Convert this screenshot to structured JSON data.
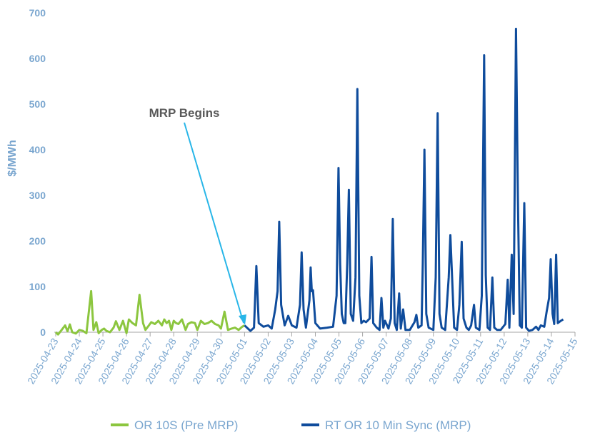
{
  "chart_data": {
    "type": "line",
    "title": "",
    "xlabel": "",
    "ylabel": "$/MWh",
    "ylim": [
      0,
      700
    ],
    "yticks": [
      "0",
      "100",
      "200",
      "300",
      "400",
      "500",
      "600",
      "700"
    ],
    "xlim": [
      "2025-04-23",
      "2025-05-15"
    ],
    "xticks": [
      "2025-04-23",
      "2025-04-24",
      "2025-04-25",
      "2025-04-26",
      "2025-04-27",
      "2025-04-28",
      "2025-04-29",
      "2025-04-30",
      "2025-05-01",
      "2025-05-02",
      "2025-05-03",
      "2025-05-04",
      "2025-05-05",
      "2025-05-06",
      "2025-05-07",
      "2025-05-08",
      "2025-05-09",
      "2025-05-10",
      "2025-05-11",
      "2025-05-12",
      "2025-05-13",
      "2025-05-14",
      "2025-05-15"
    ],
    "grid": false,
    "legend_position": "bottom",
    "colors": {
      "pre": "#8cc63f",
      "post": "#0f4c9c",
      "axis_text": "#7aa6cf",
      "annotation_arrow": "#29b6e8",
      "annotation_text": "#595959"
    },
    "annotation": {
      "text": "MRP Begins",
      "date": "2025-05-01"
    },
    "series": [
      {
        "name": "OR 10S (Pre MRP)",
        "x": [
          "2025-04-23",
          "2025-04-23.1",
          "2025-04-23.25",
          "2025-04-23.4",
          "2025-04-23.5",
          "2025-04-23.6",
          "2025-04-23.7",
          "2025-04-23.85",
          "2025-04-24",
          "2025-04-24.15",
          "2025-04-24.3",
          "2025-04-24.5",
          "2025-04-24.6",
          "2025-04-24.72",
          "2025-04-24.82",
          "2025-04-24.95",
          "2025-04-25.05",
          "2025-04-25.15",
          "2025-04-25.3",
          "2025-04-25.45",
          "2025-04-25.55",
          "2025-04-25.7",
          "2025-04-25.85",
          "2025-04-26",
          "2025-04-26.1",
          "2025-04-26.25",
          "2025-04-26.4",
          "2025-04-26.55",
          "2025-04-26.7",
          "2025-04-26.8",
          "2025-04-26.95",
          "2025-04-27.05",
          "2025-04-27.2",
          "2025-04-27.35",
          "2025-04-27.5",
          "2025-04-27.6",
          "2025-04-27.7",
          "2025-04-27.8",
          "2025-04-27.9",
          "2025-04-28",
          "2025-04-28.1",
          "2025-04-28.2",
          "2025-04-28.35",
          "2025-04-28.5",
          "2025-04-28.6",
          "2025-04-28.75",
          "2025-04-28.9",
          "2025-04-29",
          "2025-04-29.15",
          "2025-04-29.3",
          "2025-04-29.45",
          "2025-04-29.6",
          "2025-04-29.75",
          "2025-04-29.9",
          "2025-04-30",
          "2025-04-30.15",
          "2025-04-30.3",
          "2025-04-30.45",
          "2025-04-30.6",
          "2025-04-30.75",
          "2025-04-30.9",
          "2025-05-01"
        ],
        "values": [
          0,
          -5,
          5,
          15,
          2,
          17,
          0,
          -3,
          5,
          3,
          -2,
          90,
          5,
          22,
          -2,
          5,
          8,
          3,
          0,
          10,
          24,
          5,
          25,
          -2,
          28,
          20,
          15,
          82,
          20,
          5,
          15,
          22,
          18,
          25,
          15,
          28,
          20,
          25,
          5,
          25,
          20,
          18,
          28,
          5,
          18,
          22,
          20,
          5,
          25,
          18,
          20,
          25,
          18,
          15,
          8,
          45,
          5,
          8,
          10,
          5,
          12,
          15
        ]
      },
      {
        "name": "RT OR 10 Min Sync (MRP)",
        "x": [],
        "values": []
      }
    ],
    "post_series_points": [
      [
        "2025-05-01",
        15
      ],
      [
        "2025-05-01.1",
        10
      ],
      [
        "2025-05-01.25",
        3
      ],
      [
        "2025-05-01.4",
        10
      ],
      [
        "2025-05-01.5",
        145
      ],
      [
        "2025-05-01.6",
        20
      ],
      [
        "2025-05-01.8",
        12
      ],
      [
        "2025-05-02",
        15
      ],
      [
        "2025-05-02.15",
        8
      ],
      [
        "2025-05-02.3",
        50
      ],
      [
        "2025-05-02.4",
        90
      ],
      [
        "2025-05-02.47",
        242
      ],
      [
        "2025-05-02.55",
        60
      ],
      [
        "2025-05-02.7",
        15
      ],
      [
        "2025-05-02.85",
        36
      ],
      [
        "2025-05-03",
        15
      ],
      [
        "2025-05-03.2",
        10
      ],
      [
        "2025-05-03.35",
        60
      ],
      [
        "2025-05-03.42",
        175
      ],
      [
        "2025-05-03.5",
        50
      ],
      [
        "2025-05-03.6",
        10
      ],
      [
        "2025-05-03.75",
        70
      ],
      [
        "2025-05-03.8",
        142
      ],
      [
        "2025-05-03.85",
        90
      ],
      [
        "2025-05-03.9",
        92
      ],
      [
        "2025-05-04",
        20
      ],
      [
        "2025-05-04.2",
        8
      ],
      [
        "2025-05-04.5",
        10
      ],
      [
        "2025-05-04.75",
        12
      ],
      [
        "2025-05-04.9",
        80
      ],
      [
        "2025-05-04.98",
        360
      ],
      [
        "2025-05-05.05",
        150
      ],
      [
        "2025-05-05.12",
        40
      ],
      [
        "2025-05-05.2",
        20
      ],
      [
        "2025-05-05.27",
        20
      ],
      [
        "2025-05-05.35",
        150
      ],
      [
        "2025-05-05.42",
        312
      ],
      [
        "2025-05-05.5",
        40
      ],
      [
        "2025-05-05.6",
        25
      ],
      [
        "2025-05-05.7",
        120
      ],
      [
        "2025-05-05.78",
        533
      ],
      [
        "2025-05-05.86",
        80
      ],
      [
        "2025-05-05.95",
        20
      ],
      [
        "2025-05-06.05",
        25
      ],
      [
        "2025-05-06.15",
        22
      ],
      [
        "2025-05-06.3",
        30
      ],
      [
        "2025-05-06.38",
        165
      ],
      [
        "2025-05-06.45",
        20
      ],
      [
        "2025-05-06.6",
        10
      ],
      [
        "2025-05-06.72",
        5
      ],
      [
        "2025-05-06.8",
        75
      ],
      [
        "2025-05-06.88",
        10
      ],
      [
        "2025-05-06.95",
        25
      ],
      [
        "2025-05-07.1",
        8
      ],
      [
        "2025-05-07.2",
        30
      ],
      [
        "2025-05-07.28",
        248
      ],
      [
        "2025-05-07.36",
        20
      ],
      [
        "2025-05-07.45",
        5
      ],
      [
        "2025-05-07.55",
        85
      ],
      [
        "2025-05-07.62",
        8
      ],
      [
        "2025-05-07.72",
        50
      ],
      [
        "2025-05-07.82",
        5
      ],
      [
        "2025-05-08",
        5
      ],
      [
        "2025-05-08.2",
        22
      ],
      [
        "2025-05-08.28",
        38
      ],
      [
        "2025-05-08.36",
        10
      ],
      [
        "2025-05-08.5",
        15
      ],
      [
        "2025-05-08.55",
        150
      ],
      [
        "2025-05-08.62",
        400
      ],
      [
        "2025-05-08.7",
        40
      ],
      [
        "2025-05-08.8",
        10
      ],
      [
        "2025-05-09",
        5
      ],
      [
        "2025-05-09.1",
        120
      ],
      [
        "2025-05-09.18",
        480
      ],
      [
        "2025-05-09.26",
        40
      ],
      [
        "2025-05-09.35",
        10
      ],
      [
        "2025-05-09.5",
        5
      ],
      [
        "2025-05-09.65",
        120
      ],
      [
        "2025-05-09.72",
        213
      ],
      [
        "2025-05-09.8",
        110
      ],
      [
        "2025-05-09.88",
        10
      ],
      [
        "2025-05-10",
        5
      ],
      [
        "2025-05-10.1",
        60
      ],
      [
        "2025-05-10.2",
        198
      ],
      [
        "2025-05-10.28",
        30
      ],
      [
        "2025-05-10.4",
        10
      ],
      [
        "2025-05-10.5",
        5
      ],
      [
        "2025-05-10.6",
        15
      ],
      [
        "2025-05-10.72",
        60
      ],
      [
        "2025-05-10.8",
        10
      ],
      [
        "2025-05-10.95",
        5
      ],
      [
        "2025-05-11.05",
        80
      ],
      [
        "2025-05-11.15",
        607
      ],
      [
        "2025-05-11.22",
        125
      ],
      [
        "2025-05-11.3",
        10
      ],
      [
        "2025-05-11.4",
        5
      ],
      [
        "2025-05-11.5",
        120
      ],
      [
        "2025-05-11.58",
        10
      ],
      [
        "2025-05-11.7",
        5
      ],
      [
        "2025-05-11.85",
        5
      ],
      [
        "2025-05-12.05",
        18
      ],
      [
        "2025-05-12.15",
        115
      ],
      [
        "2025-05-12.22",
        10
      ],
      [
        "2025-05-12.32",
        170
      ],
      [
        "2025-05-12.4",
        40
      ],
      [
        "2025-05-12.5",
        665
      ],
      [
        "2025-05-12.58",
        300
      ],
      [
        "2025-05-12.66",
        15
      ],
      [
        "2025-05-12.75",
        10
      ],
      [
        "2025-05-12.85",
        283
      ],
      [
        "2025-05-12.93",
        10
      ],
      [
        "2025-05-13.05",
        3
      ],
      [
        "2025-05-13.2",
        5
      ],
      [
        "2025-05-13.35",
        12
      ],
      [
        "2025-05-13.45",
        5
      ],
      [
        "2025-05-13.55",
        15
      ],
      [
        "2025-05-13.7",
        12
      ],
      [
        "2025-05-13.8",
        45
      ],
      [
        "2025-05-13.9",
        75
      ],
      [
        "2025-05-13.97",
        160
      ],
      [
        "2025-05-14.05",
        40
      ],
      [
        "2025-05-14.12",
        18
      ],
      [
        "2025-05-14.2",
        170
      ],
      [
        "2025-05-14.27",
        20
      ],
      [
        "2025-05-14.4",
        25
      ],
      [
        "2025-05-14.5",
        28
      ]
    ]
  }
}
